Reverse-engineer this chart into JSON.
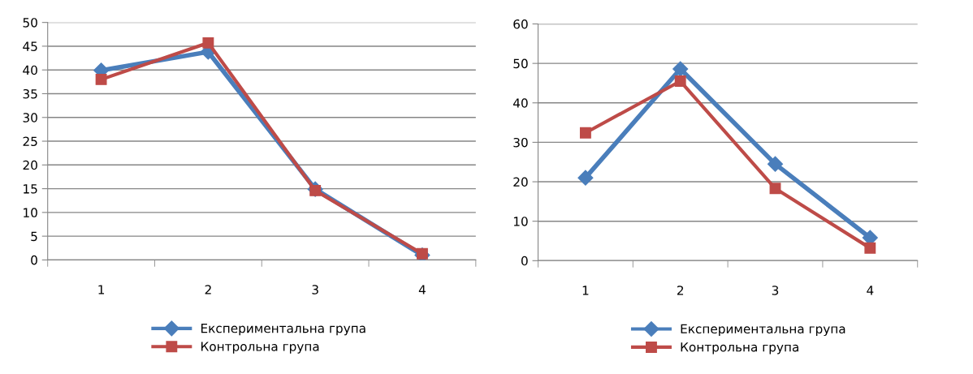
{
  "chart_data": [
    {
      "type": "line",
      "categories": [
        "1",
        "2",
        "3",
        "4"
      ],
      "ylim": [
        0,
        50
      ],
      "yticks": [
        0,
        5,
        10,
        15,
        20,
        25,
        30,
        35,
        40,
        45,
        50
      ],
      "grid": "y",
      "legend": "bottom",
      "series": [
        {
          "name": "Експериментальна група",
          "color": "#4a7ebb",
          "values": [
            39.9,
            43.8,
            14.9,
            1.0
          ],
          "marker": "diamond"
        },
        {
          "name": "Контрольна група",
          "color": "#be4b48",
          "values": [
            38.0,
            45.7,
            14.6,
            1.3
          ],
          "marker": "square"
        }
      ]
    },
    {
      "type": "line",
      "categories": [
        "1",
        "2",
        "3",
        "4"
      ],
      "ylim": [
        0,
        60
      ],
      "yticks": [
        0,
        10,
        20,
        30,
        40,
        50,
        60
      ],
      "grid": "y",
      "legend": "bottom",
      "series": [
        {
          "name": "Експериментальна група",
          "color": "#4a7ebb",
          "values": [
            21.0,
            48.6,
            24.5,
            5.8
          ],
          "marker": "diamond"
        },
        {
          "name": "Контрольна група",
          "color": "#be4b48",
          "values": [
            32.4,
            45.5,
            18.3,
            3.2
          ],
          "marker": "square"
        }
      ]
    }
  ]
}
